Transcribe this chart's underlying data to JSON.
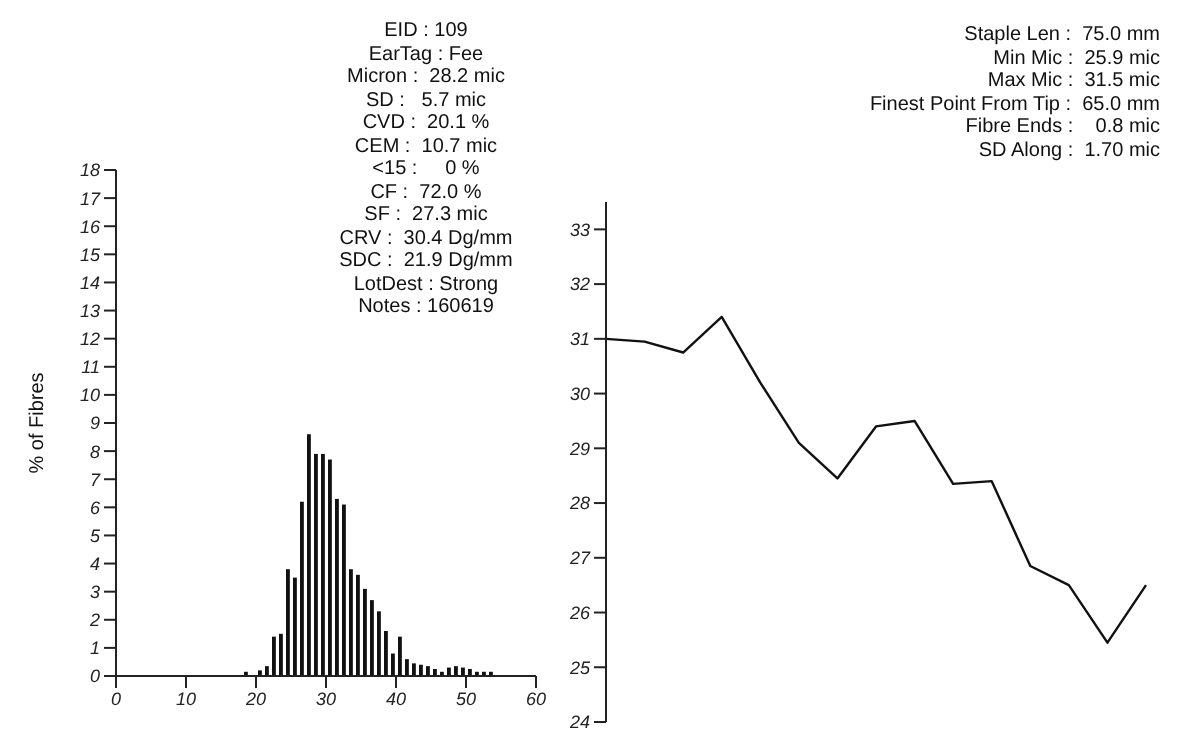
{
  "chart_data": [
    {
      "type": "histogram",
      "ylabel": "% of Fibres",
      "annotations": [
        "EID : 109",
        "EarTag : Fee",
        "Micron :  28.2 mic",
        "SD :   5.7 mic",
        "CVD :  20.1 %",
        "CEM :  10.7 mic",
        "<15 :     0 %",
        "CF :  72.0 %",
        "SF :  27.3 mic",
        "CRV :  30.4 Dg/mm",
        "SDC :  21.9 Dg/mm",
        "LotDest : Strong",
        "Notes : 160619"
      ],
      "bins": [
        18,
        19,
        20,
        21,
        22,
        23,
        24,
        25,
        26,
        27,
        28,
        29,
        30,
        31,
        32,
        33,
        34,
        35,
        36,
        37,
        38,
        39,
        40,
        41,
        42,
        43,
        44,
        45,
        46,
        47,
        48,
        49,
        50,
        51,
        52,
        53,
        54
      ],
      "values": [
        0.15,
        0,
        0.2,
        0.35,
        1.4,
        1.5,
        3.8,
        3.5,
        6.2,
        8.6,
        7.9,
        7.9,
        7.7,
        6.3,
        6.1,
        3.8,
        3.6,
        3.1,
        2.7,
        2.3,
        1.6,
        0.8,
        1.4,
        0.6,
        0.45,
        0.4,
        0.35,
        0.25,
        0.15,
        0.3,
        0.35,
        0.3,
        0.25,
        0.15,
        0.15,
        0.15
      ],
      "color": "#111111",
      "xlim": [
        0,
        60
      ],
      "xticks": [
        0,
        10,
        20,
        30,
        40,
        50,
        60
      ],
      "ylim": [
        0,
        18
      ],
      "yticks": [
        0,
        1,
        2,
        3,
        4,
        5,
        6,
        7,
        8,
        9,
        10,
        11,
        12,
        13,
        14,
        15,
        16,
        17,
        18
      ],
      "grid": false,
      "legend": false
    },
    {
      "type": "line",
      "annotations": [
        "Staple Len :  75.0 mm",
        "Min Mic :  25.9 mic",
        "Max Mic :  31.5 mic",
        "Finest Point From Tip :  65.0 mm",
        "Fibre Ends :    0.8 mic",
        "SD Along :  1.70 mic"
      ],
      "categories": [
        null,
        null,
        null,
        null,
        null,
        null,
        null,
        null,
        null,
        null,
        null,
        null,
        null,
        null,
        null
      ],
      "values": [
        31.0,
        30.95,
        30.75,
        31.4,
        30.2,
        29.1,
        28.45,
        29.4,
        29.5,
        28.35,
        28.4,
        26.85,
        26.5,
        25.45,
        26.5
      ],
      "color": "#111111",
      "ylim": [
        24,
        33.5
      ],
      "yticks": [
        24,
        25,
        26,
        27,
        28,
        29,
        30,
        31,
        32,
        33
      ],
      "tick_labels": "y",
      "marker": "none",
      "line_style": "solid",
      "grid": false,
      "legend": false
    }
  ]
}
